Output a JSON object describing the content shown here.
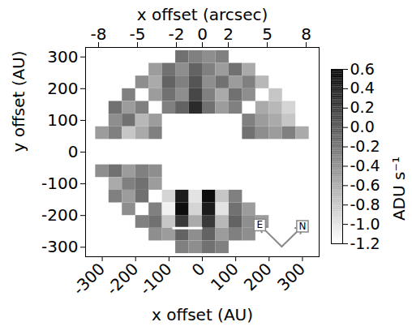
{
  "chart_data": {
    "type": "heatmap",
    "x_label": "x offset (AU)",
    "y_label": "y offset (AU)",
    "x2_label": "x offset (arcsec)",
    "xlim": [
      -350,
      350
    ],
    "ylim": [
      -330,
      330
    ],
    "xticks": [
      -300,
      -200,
      -100,
      0,
      100,
      200,
      300
    ],
    "yticks": [
      -300,
      -200,
      -100,
      0,
      100,
      200,
      300
    ],
    "x2lim": [
      -9,
      9
    ],
    "x2ticks": [
      -8,
      -5,
      -2,
      0,
      2,
      5,
      8
    ],
    "x": [
      -300,
      -260,
      -220,
      -180,
      -140,
      -100,
      -60,
      -20,
      20,
      60,
      100,
      140,
      180,
      220,
      260,
      300
    ],
    "y": [
      300,
      260,
      220,
      180,
      140,
      100,
      60,
      20,
      -20,
      -60,
      -100,
      -140,
      -180,
      -220,
      -260,
      -300
    ],
    "cells": [
      [
        null,
        null,
        null,
        null,
        null,
        null,
        -0.2,
        -0.3,
        -0.4,
        -0.3,
        null,
        null,
        null,
        null,
        null,
        null
      ],
      [
        null,
        null,
        null,
        null,
        -0.5,
        -0.2,
        -0.4,
        -0.1,
        -0.3,
        -0.5,
        -0.2,
        -0.6,
        null,
        null,
        null,
        null
      ],
      [
        null,
        null,
        null,
        -0.4,
        -0.6,
        -0.1,
        -0.3,
        0.0,
        -0.4,
        -0.2,
        -0.5,
        -0.3,
        -0.7,
        null,
        null,
        null
      ],
      [
        null,
        null,
        -0.3,
        null,
        -0.5,
        -0.2,
        -0.4,
        0.1,
        -0.3,
        -0.6,
        -0.2,
        -0.4,
        null,
        -0.8,
        null,
        null
      ],
      [
        null,
        -0.2,
        -0.5,
        -0.3,
        null,
        -0.3,
        -0.1,
        0.3,
        -0.2,
        -0.5,
        -0.3,
        null,
        -0.6,
        -0.7,
        -0.9,
        null
      ],
      [
        null,
        -0.4,
        -0.2,
        -0.7,
        -0.5,
        null,
        null,
        null,
        null,
        null,
        null,
        -0.3,
        -0.5,
        -0.6,
        -0.8,
        null
      ],
      [
        -0.5,
        -0.3,
        -0.8,
        -0.6,
        -0.3,
        null,
        null,
        null,
        null,
        null,
        null,
        -0.2,
        -0.4,
        -0.5,
        -0.3,
        -0.6
      ],
      [
        null,
        null,
        null,
        null,
        null,
        null,
        null,
        null,
        null,
        null,
        null,
        null,
        null,
        null,
        null,
        null
      ],
      [
        null,
        null,
        null,
        null,
        null,
        null,
        null,
        null,
        null,
        null,
        null,
        null,
        null,
        null,
        null,
        null
      ],
      [
        -0.4,
        -0.2,
        -0.5,
        -0.3,
        -0.4,
        null,
        null,
        null,
        null,
        null,
        null,
        null,
        null,
        null,
        null,
        null
      ],
      [
        null,
        -0.6,
        -0.3,
        -0.2,
        -0.5,
        null,
        null,
        null,
        null,
        null,
        null,
        null,
        null,
        null,
        null,
        null
      ],
      [
        null,
        -0.3,
        -0.5,
        -0.2,
        null,
        -0.9,
        0.4,
        -1.0,
        0.5,
        -0.8,
        -0.3,
        null,
        null,
        null,
        null,
        null
      ],
      [
        null,
        null,
        -0.4,
        null,
        -0.3,
        -1.1,
        0.5,
        -0.9,
        0.4,
        -1.0,
        -0.2,
        -0.5,
        null,
        null,
        null,
        null
      ],
      [
        null,
        null,
        null,
        -0.3,
        -0.2,
        -0.8,
        0.2,
        -0.6,
        0.2,
        -0.7,
        -0.1,
        -0.4,
        -0.5,
        null,
        null,
        null
      ],
      [
        null,
        null,
        null,
        null,
        -0.4,
        -0.5,
        -0.1,
        -0.4,
        -0.1,
        -0.5,
        -0.3,
        -0.4,
        null,
        null,
        null,
        null
      ],
      [
        null,
        null,
        null,
        null,
        null,
        null,
        -0.3,
        -0.4,
        -0.2,
        -0.3,
        null,
        null,
        null,
        null,
        null,
        null
      ]
    ],
    "colorbar": {
      "range": [
        -1.2,
        0.6
      ],
      "ticks": [
        0.6,
        0.4,
        0.2,
        {
          "value": 0,
          "label": "0.0"
        },
        -0.2,
        -0.4,
        -0.6,
        -0.8,
        {
          "value": -1,
          "label": "-1.0"
        },
        -1.2
      ],
      "label": "ADU s⁻¹"
    },
    "scale_bar": {
      "x1": -90,
      "x2": 0,
      "y": -240,
      "color": "#ffffff"
    },
    "compass": {
      "origin": [
        238,
        -298
      ],
      "color": "#888888",
      "arrows": [
        {
          "label": "E",
          "to": [
            172,
            -230
          ]
        },
        {
          "label": "N",
          "to": [
            300,
            -234
          ]
        }
      ]
    }
  }
}
